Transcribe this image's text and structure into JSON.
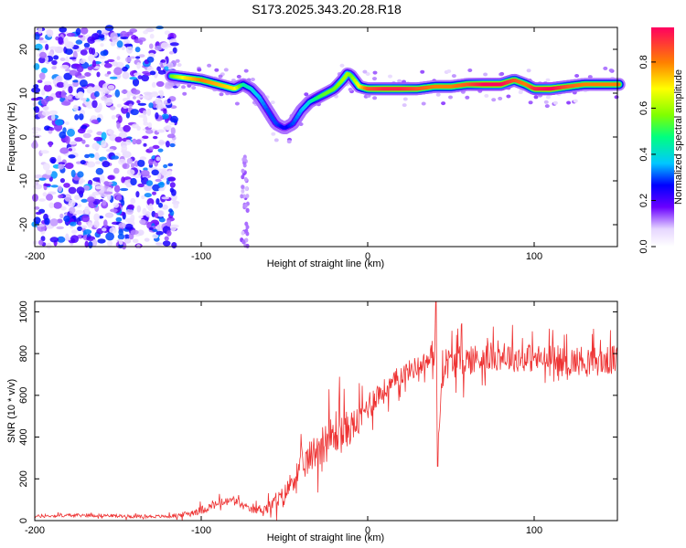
{
  "title": "S173.2025.343.20.28.R18",
  "chart_data": [
    {
      "type": "heatmap",
      "xlabel": "Height of straight line (km)",
      "ylabel": "Frequency (Hz)",
      "xlim": [
        -200,
        150
      ],
      "ylim": [
        -25,
        25
      ],
      "xticks": [
        -200,
        -100,
        0,
        100
      ],
      "yticks": [
        -20,
        -10,
        0,
        10,
        20
      ],
      "colorbar": {
        "label": "Normalized spectral amplitude",
        "range": [
          0.0,
          0.95
        ],
        "ticks": [
          0.0,
          0.2,
          0.4,
          0.6,
          0.8
        ],
        "tick_labels": [
          "0.0",
          "0.2",
          "0.4",
          "0.6",
          "0.8"
        ]
      },
      "ridge": {
        "x": [
          -120,
          -110,
          -100,
          -90,
          -80,
          -75,
          -70,
          -65,
          -60,
          -55,
          -50,
          -45,
          -40,
          -35,
          -30,
          -25,
          -20,
          -15,
          -12,
          -10,
          -5,
          0,
          10,
          20,
          30,
          40,
          50,
          60,
          70,
          80,
          88,
          95,
          100,
          110,
          120,
          130,
          140,
          150
        ],
        "y": [
          14,
          13.5,
          13,
          12,
          11,
          12,
          11,
          9,
          6,
          3,
          2,
          3,
          6,
          8,
          9,
          10,
          11,
          13,
          14.5,
          14,
          11.5,
          11,
          11,
          11,
          11,
          11.5,
          11.5,
          12,
          12,
          12,
          13,
          12,
          11,
          11,
          11.5,
          12,
          12,
          12
        ],
        "amplitude": [
          0.5,
          0.7,
          0.8,
          0.75,
          0.7,
          0.45,
          0.4,
          0.35,
          0.3,
          0.3,
          0.25,
          0.3,
          0.35,
          0.4,
          0.5,
          0.55,
          0.55,
          0.6,
          0.6,
          0.55,
          0.7,
          0.85,
          0.9,
          0.9,
          0.85,
          0.8,
          0.8,
          0.85,
          0.95,
          0.95,
          0.85,
          0.8,
          0.9,
          0.95,
          0.85,
          0.8,
          0.8,
          0.8
        ]
      },
      "noise_region": {
        "x_range": [
          -200,
          -115
        ],
        "freq_range": [
          -25,
          25
        ],
        "amplitude_range": [
          0.05,
          0.35
        ]
      }
    },
    {
      "type": "line",
      "xlabel": "Height of straight line (km)",
      "ylabel": "SNR (10 * v/v)",
      "xlim": [
        -200,
        150
      ],
      "ylim": [
        0,
        1050
      ],
      "xticks": [
        -200,
        -100,
        0,
        100
      ],
      "yticks": [
        0,
        200,
        400,
        600,
        800,
        1000
      ],
      "color": "#ee3333",
      "series": [
        {
          "name": "SNR",
          "x": [
            -200,
            -180,
            -160,
            -140,
            -120,
            -110,
            -100,
            -90,
            -80,
            -75,
            -70,
            -60,
            -50,
            -45,
            -40,
            -35,
            -30,
            -25,
            -20,
            -18,
            -15,
            -10,
            -5,
            0,
            5,
            10,
            15,
            20,
            25,
            30,
            35,
            40,
            41,
            42,
            45,
            50,
            60,
            70,
            80,
            90,
            100,
            110,
            120,
            130,
            140,
            150
          ],
          "y": [
            20,
            25,
            25,
            20,
            20,
            30,
            50,
            80,
            100,
            70,
            50,
            60,
            120,
            200,
            250,
            300,
            350,
            380,
            400,
            450,
            420,
            450,
            480,
            550,
            600,
            620,
            650,
            700,
            720,
            740,
            760,
            780,
            1050,
            300,
            750,
            760,
            770,
            780,
            790,
            780,
            780,
            760,
            760,
            770,
            760,
            770
          ],
          "envelope_spread": [
            15,
            15,
            15,
            15,
            15,
            25,
            40,
            40,
            40,
            35,
            30,
            60,
            100,
            120,
            140,
            160,
            180,
            200,
            230,
            260,
            200,
            160,
            150,
            140,
            130,
            120,
            110,
            100,
            100,
            100,
            100,
            110,
            0,
            0,
            150,
            160,
            150,
            140,
            140,
            140,
            140,
            140,
            140,
            140,
            140,
            140
          ]
        }
      ]
    }
  ]
}
